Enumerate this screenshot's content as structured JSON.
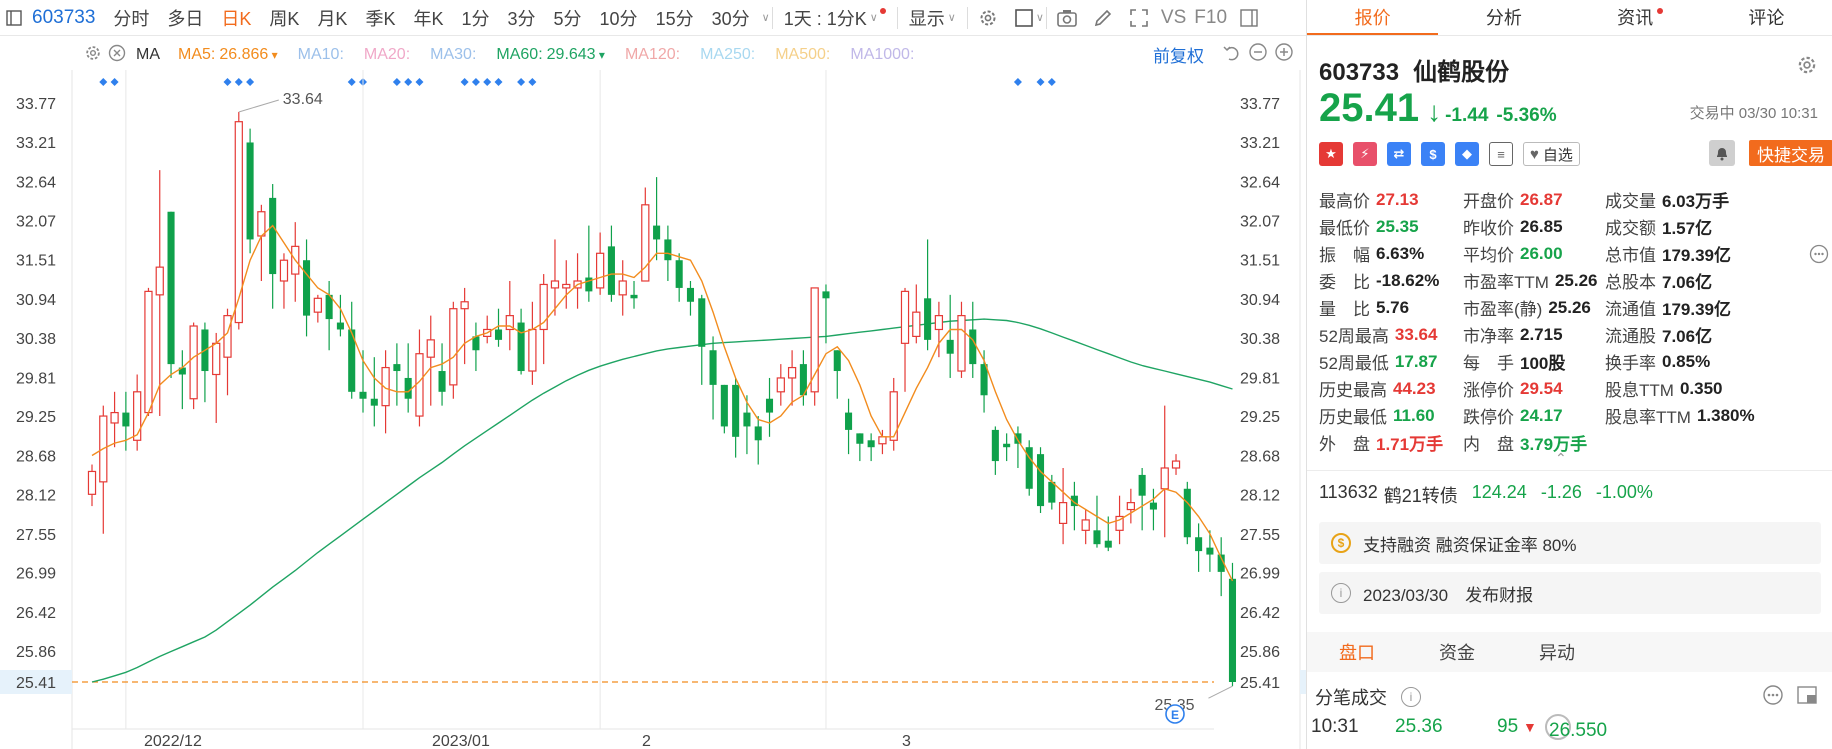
{
  "toolbar": {
    "code": "603733",
    "periods": [
      "分时",
      "多日",
      "日K",
      "周K",
      "月K",
      "季K",
      "年K",
      "1分",
      "3分",
      "5分",
      "10分",
      "15分",
      "30分"
    ],
    "active_period": "日K",
    "range_label": "1天 : 1分K",
    "display_label": "显示",
    "vs_label": "VS",
    "f10_label": "F10"
  },
  "ma_bar": {
    "ma_label": "MA",
    "items": [
      {
        "label": "MA5:",
        "value": "26.866",
        "color": "#f28c1e",
        "dim": false,
        "arrow": "down"
      },
      {
        "label": "MA10:",
        "value": "",
        "color": "#9cc0ea",
        "dim": true
      },
      {
        "label": "MA20:",
        "value": "",
        "color": "#f0a8c8",
        "dim": true
      },
      {
        "label": "MA30:",
        "value": "",
        "color": "#9cc0ea",
        "dim": true
      },
      {
        "label": "MA60:",
        "value": "29.643",
        "color": "#1fa463",
        "dim": false,
        "arrow": "down"
      },
      {
        "label": "MA120:",
        "value": "",
        "color": "#f0a8a8",
        "dim": true
      },
      {
        "label": "MA250:",
        "value": "",
        "color": "#a8d8f0",
        "dim": true
      },
      {
        "label": "MA500:",
        "value": "",
        "color": "#f5d08a",
        "dim": true
      },
      {
        "label": "MA1000:",
        "value": "",
        "color": "#c0b8e8",
        "dim": true
      }
    ],
    "adjust_label": "前复权"
  },
  "chart_data": {
    "type": "candlestick",
    "y_ticks": [
      33.77,
      33.21,
      32.64,
      32.07,
      31.51,
      30.94,
      30.38,
      29.81,
      29.25,
      28.68,
      28.12,
      27.55,
      26.99,
      26.42,
      25.86,
      25.41
    ],
    "ylim": [
      25.0,
      34.15
    ],
    "x_labels": [
      {
        "label": "2022/12",
        "index": 3
      },
      {
        "label": "2023/01",
        "index": 24
      },
      {
        "label": "2",
        "index": 45
      },
      {
        "label": "3",
        "index": 65
      }
    ],
    "current_price": 25.41,
    "high_annotation": {
      "value": "33.64",
      "index": 11
    },
    "low_annotation": {
      "value": "25.35",
      "index": 84
    },
    "candles": [
      [
        28.12,
        28.45,
        27.95,
        28.55
      ],
      [
        28.3,
        29.25,
        27.55,
        29.4
      ],
      [
        29.15,
        29.3,
        28.8,
        29.6
      ],
      [
        29.3,
        29.1,
        28.75,
        29.6
      ],
      [
        28.9,
        29.6,
        28.75,
        29.85
      ],
      [
        29.3,
        31.05,
        29.25,
        31.1
      ],
      [
        31.0,
        31.4,
        29.25,
        32.8
      ],
      [
        32.2,
        30.0,
        29.8,
        32.2
      ],
      [
        29.95,
        29.85,
        29.35,
        30.2
      ],
      [
        29.5,
        30.55,
        29.35,
        30.6
      ],
      [
        30.5,
        29.9,
        29.45,
        30.6
      ],
      [
        29.85,
        30.3,
        29.15,
        30.45
      ],
      [
        30.1,
        30.7,
        29.55,
        30.8
      ],
      [
        30.6,
        33.5,
        30.5,
        33.64
      ],
      [
        33.2,
        31.8,
        31.6,
        33.4
      ],
      [
        31.85,
        32.2,
        31.2,
        32.3
      ],
      [
        32.4,
        31.3,
        30.8,
        32.6
      ],
      [
        31.2,
        31.5,
        30.8,
        31.6
      ],
      [
        31.3,
        31.7,
        30.9,
        32.05
      ],
      [
        31.5,
        30.7,
        30.4,
        31.8
      ],
      [
        30.75,
        30.95,
        30.6,
        31.0
      ],
      [
        31.0,
        30.65,
        30.2,
        31.2
      ],
      [
        30.6,
        30.5,
        30.4,
        31.0
      ],
      [
        30.5,
        29.6,
        29.5,
        30.9
      ],
      [
        29.6,
        29.5,
        29.3,
        30.2
      ],
      [
        29.5,
        29.4,
        29.1,
        30.1
      ],
      [
        29.4,
        29.95,
        29.0,
        30.2
      ],
      [
        30.0,
        29.9,
        29.4,
        30.3
      ],
      [
        29.8,
        29.5,
        29.3,
        30.3
      ],
      [
        29.25,
        30.15,
        29.1,
        30.5
      ],
      [
        30.1,
        30.35,
        29.4,
        30.7
      ],
      [
        29.9,
        29.6,
        29.4,
        30.3
      ],
      [
        29.7,
        30.8,
        29.5,
        30.9
      ],
      [
        30.8,
        30.9,
        30.0,
        31.1
      ],
      [
        30.4,
        30.2,
        29.9,
        30.6
      ],
      [
        30.4,
        30.5,
        30.3,
        30.7
      ],
      [
        30.5,
        30.35,
        30.25,
        30.8
      ],
      [
        30.5,
        30.7,
        30.2,
        31.2
      ],
      [
        30.6,
        29.9,
        29.85,
        30.8
      ],
      [
        29.9,
        30.5,
        29.7,
        30.9
      ],
      [
        30.5,
        31.15,
        30.0,
        31.3
      ],
      [
        31.1,
        31.2,
        30.7,
        31.8
      ],
      [
        31.1,
        31.15,
        30.8,
        31.5
      ],
      [
        31.1,
        31.2,
        30.8,
        31.6
      ],
      [
        31.25,
        31.05,
        30.9,
        32.0
      ],
      [
        31.1,
        31.6,
        31.0,
        31.9
      ],
      [
        31.7,
        31.0,
        30.9,
        32.0
      ],
      [
        31.0,
        31.2,
        30.7,
        31.5
      ],
      [
        31.0,
        30.95,
        30.8,
        31.2
      ],
      [
        31.2,
        32.3,
        31.2,
        32.55
      ],
      [
        32.0,
        31.8,
        31.5,
        32.7
      ],
      [
        31.8,
        31.5,
        31.2,
        32.0
      ],
      [
        31.5,
        31.1,
        30.9,
        31.6
      ],
      [
        31.1,
        30.9,
        30.7,
        31.2
      ],
      [
        30.95,
        30.25,
        29.7,
        31.0
      ],
      [
        30.2,
        29.7,
        29.2,
        30.4
      ],
      [
        29.7,
        29.1,
        29.0,
        29.7
      ],
      [
        29.7,
        28.95,
        28.65,
        29.8
      ],
      [
        29.3,
        29.1,
        28.7,
        29.55
      ],
      [
        29.1,
        28.9,
        28.55,
        29.25
      ],
      [
        29.5,
        29.3,
        28.95,
        29.8
      ],
      [
        29.6,
        29.8,
        29.4,
        30.0
      ],
      [
        29.8,
        29.95,
        29.4,
        30.2
      ],
      [
        30.0,
        29.55,
        29.4,
        30.2
      ],
      [
        29.6,
        31.1,
        29.4,
        31.1
      ],
      [
        31.05,
        30.95,
        30.3,
        31.15
      ],
      [
        30.2,
        29.9,
        29.5,
        30.2
      ],
      [
        29.3,
        29.05,
        28.7,
        29.5
      ],
      [
        29.0,
        28.85,
        28.6,
        29.0
      ],
      [
        28.9,
        28.8,
        28.6,
        29.0
      ],
      [
        28.85,
        28.95,
        28.7,
        29.05
      ],
      [
        28.9,
        29.6,
        28.75,
        29.8
      ],
      [
        30.3,
        31.05,
        29.6,
        31.1
      ],
      [
        30.4,
        30.75,
        30.3,
        31.15
      ],
      [
        30.95,
        30.35,
        30.2,
        31.8
      ],
      [
        30.5,
        30.7,
        30.1,
        30.9
      ],
      [
        30.35,
        30.15,
        29.8,
        31.0
      ],
      [
        29.9,
        30.7,
        29.8,
        30.9
      ],
      [
        30.5,
        30.0,
        29.8,
        30.9
      ],
      [
        30.0,
        29.55,
        29.3,
        30.2
      ],
      [
        29.05,
        28.6,
        28.4,
        29.1
      ],
      [
        28.85,
        28.8,
        28.6,
        29.0
      ],
      [
        29.0,
        28.85,
        28.5,
        29.1
      ],
      [
        28.8,
        28.2,
        28.1,
        28.9
      ],
      [
        28.7,
        27.95,
        27.85,
        28.8
      ],
      [
        28.3,
        28.0,
        27.9,
        28.4
      ],
      [
        27.7,
        28.0,
        27.4,
        28.5
      ],
      [
        28.1,
        27.95,
        27.6,
        28.3
      ],
      [
        27.6,
        27.75,
        27.4,
        27.9
      ],
      [
        27.6,
        27.4,
        27.35,
        28.1
      ],
      [
        27.45,
        27.35,
        27.3,
        27.8
      ],
      [
        27.6,
        27.8,
        27.4,
        28.1
      ],
      [
        27.9,
        28.0,
        27.7,
        28.2
      ],
      [
        28.4,
        28.1,
        27.6,
        28.5
      ],
      [
        28.0,
        27.9,
        27.6,
        28.2
      ],
      [
        28.2,
        28.5,
        27.5,
        29.4
      ],
      [
        28.5,
        28.6,
        28.4,
        28.7
      ],
      [
        28.2,
        27.5,
        27.4,
        28.3
      ],
      [
        27.5,
        27.3,
        27.0,
        27.7
      ],
      [
        27.35,
        27.25,
        27.0,
        27.6
      ],
      [
        27.25,
        27.0,
        26.65,
        27.5
      ],
      [
        26.9,
        25.41,
        25.35,
        27.13
      ]
    ],
    "ma5": [
      28.68,
      28.78,
      28.86,
      28.9,
      28.98,
      29.3,
      29.7,
      29.85,
      29.95,
      30.1,
      30.2,
      30.3,
      30.45,
      30.95,
      31.5,
      31.85,
      32.0,
      31.75,
      31.5,
      31.3,
      31.1,
      31.0,
      30.8,
      30.45,
      30.05,
      29.8,
      29.65,
      29.6,
      29.6,
      29.75,
      29.95,
      30.0,
      30.1,
      30.3,
      30.4,
      30.45,
      30.55,
      30.55,
      30.45,
      30.5,
      30.6,
      30.8,
      31.0,
      31.15,
      31.2,
      31.25,
      31.3,
      31.3,
      31.25,
      31.4,
      31.6,
      31.6,
      31.55,
      31.5,
      31.2,
      30.75,
      30.25,
      29.8,
      29.45,
      29.2,
      29.15,
      29.25,
      29.45,
      29.55,
      29.85,
      30.15,
      30.25,
      30.05,
      29.7,
      29.25,
      28.95,
      28.95,
      29.3,
      29.65,
      29.95,
      30.3,
      30.5,
      30.5,
      30.35,
      30.05,
      29.6,
      29.2,
      28.9,
      28.65,
      28.45,
      28.3,
      28.15,
      28.0,
      27.9,
      27.8,
      27.7,
      27.75,
      27.85,
      27.95,
      28.05,
      28.2,
      28.15,
      28.0,
      27.8,
      27.55,
      27.2,
      26.87
    ],
    "ma60": [
      25.41,
      25.45,
      25.5,
      25.55,
      25.62,
      25.7,
      25.78,
      25.85,
      25.92,
      25.99,
      26.06,
      26.16,
      26.28,
      26.4,
      26.52,
      26.65,
      26.78,
      26.9,
      27.02,
      27.15,
      27.28,
      27.4,
      27.52,
      27.64,
      27.76,
      27.88,
      28.0,
      28.12,
      28.24,
      28.36,
      28.47,
      28.58,
      28.7,
      28.82,
      28.93,
      29.04,
      29.15,
      29.26,
      29.37,
      29.48,
      29.58,
      29.67,
      29.76,
      29.84,
      29.91,
      29.97,
      30.02,
      30.07,
      30.11,
      30.15,
      30.19,
      30.22,
      30.24,
      30.26,
      30.28,
      30.3,
      30.31,
      30.32,
      30.33,
      30.34,
      30.35,
      30.36,
      30.37,
      30.38,
      30.39,
      30.4,
      30.42,
      30.44,
      30.46,
      30.48,
      30.5,
      30.52,
      30.54,
      30.56,
      30.58,
      30.6,
      30.62,
      30.63,
      30.64,
      30.65,
      30.64,
      30.63,
      30.6,
      30.56,
      30.51,
      30.45,
      30.39,
      30.33,
      30.27,
      30.21,
      30.15,
      30.09,
      30.03,
      29.98,
      29.94,
      29.9,
      29.86,
      29.82,
      29.78,
      29.74,
      29.69,
      29.64
    ]
  },
  "panel": {
    "tabs": [
      "报价",
      "分析",
      "资讯",
      "评论"
    ],
    "active_tab": "报价",
    "code": "603733",
    "name": "仙鹤股份",
    "price": "25.41",
    "change": "-1.44",
    "change_pct": "-5.36%",
    "trade_status": "交易中 03/30 10:31",
    "fav_label": "自选",
    "quick_trade_label": "快捷交易",
    "quote_rows": [
      [
        {
          "l": "最高价",
          "v": "27.13",
          "c": "red"
        },
        {
          "l": "开盘价",
          "v": "26.87",
          "c": "red"
        },
        {
          "l": "成交量",
          "v": "6.03万手",
          "c": ""
        }
      ],
      [
        {
          "l": "最低价",
          "v": "25.35",
          "c": "green"
        },
        {
          "l": "昨收价",
          "v": "26.85",
          "c": ""
        },
        {
          "l": "成交额",
          "v": "1.57亿",
          "c": ""
        }
      ],
      [
        {
          "l": "振　幅",
          "v": "6.63%",
          "c": ""
        },
        {
          "l": "平均价",
          "v": "26.00",
          "c": "green"
        },
        {
          "l": "总市值",
          "v": "179.39亿",
          "c": ""
        }
      ],
      [
        {
          "l": "委　比",
          "v": "-18.62%",
          "c": ""
        },
        {
          "l": "市盈率TTM",
          "v": "25.26",
          "c": ""
        },
        {
          "l": "总股本",
          "v": "7.06亿",
          "c": ""
        }
      ],
      [
        {
          "l": "量　比",
          "v": "5.76",
          "c": ""
        },
        {
          "l": "市盈率(静)",
          "v": "25.26",
          "c": ""
        },
        {
          "l": "流通值",
          "v": "179.39亿",
          "c": ""
        }
      ],
      [
        {
          "l": "52周最高",
          "v": "33.64",
          "c": "red"
        },
        {
          "l": "市净率",
          "v": "2.715",
          "c": ""
        },
        {
          "l": "流通股",
          "v": "7.06亿",
          "c": ""
        }
      ],
      [
        {
          "l": "52周最低",
          "v": "17.87",
          "c": "green"
        },
        {
          "l": "每　手",
          "v": "100股",
          "c": ""
        },
        {
          "l": "换手率",
          "v": "0.85%",
          "c": ""
        }
      ],
      [
        {
          "l": "历史最高",
          "v": "44.23",
          "c": "red"
        },
        {
          "l": "涨停价",
          "v": "29.54",
          "c": "red"
        },
        {
          "l": "股息TTM",
          "v": "0.350",
          "c": ""
        }
      ],
      [
        {
          "l": "历史最低",
          "v": "11.60",
          "c": "green"
        },
        {
          "l": "跌停价",
          "v": "24.17",
          "c": "green"
        },
        {
          "l": "股息率TTM",
          "v": "1.380%",
          "c": ""
        }
      ],
      [
        {
          "l": "外　盘",
          "v": "1.71万手",
          "c": "red"
        },
        {
          "l": "内　盘",
          "v": "3.79万手",
          "c": "green"
        }
      ]
    ],
    "bond": {
      "code": "113632",
      "name": "鹤21转债",
      "price": "124.24",
      "change": "-1.26",
      "pct": "-1.00%"
    },
    "margin_info": "支持融资 融资保证金率 80%",
    "report_info": "2023/03/30　发布财报",
    "bottom_tabs": [
      "盘口",
      "资金",
      "异动"
    ],
    "ticks_label": "分笔成交",
    "tick": {
      "time": "10:31",
      "price": "25.36",
      "vol": "95",
      "right_price": "26.550"
    }
  }
}
